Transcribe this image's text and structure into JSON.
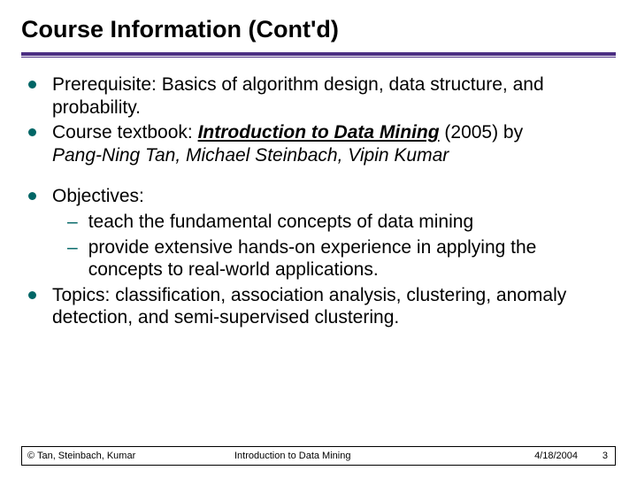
{
  "colors": {
    "rule": "#4b2e83",
    "bullet": "#006666",
    "text": "#000000",
    "background": "#ffffff"
  },
  "title": "Course Information (Cont'd)",
  "bullets": {
    "b1": "Prerequisite: Basics of algorithm design, data structure, and probability.",
    "b2_pre": "Course textbook: ",
    "b2_title": "Introduction to Data Mining",
    "b2_post": " (2005) by ",
    "b2_authors": "Pang-Ning Tan, Michael Steinbach, Vipin Kumar",
    "b3": "Objectives:",
    "b3_subs": {
      "s1": "teach the fundamental concepts of data mining",
      "s2": "provide extensive hands-on experience in applying the concepts to real-world applications."
    },
    "b4": "Topics: classification, association analysis, clustering, anomaly detection, and semi-supervised clustering."
  },
  "footer": {
    "copyright": "© Tan, Steinbach, Kumar",
    "course": "Introduction to Data Mining",
    "date": "4/18/2004",
    "page": "3"
  }
}
